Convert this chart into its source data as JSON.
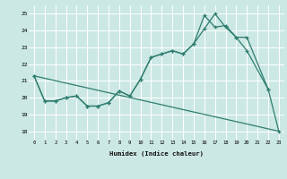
{
  "xlabel": "Humidex (Indice chaleur)",
  "bg_color": "#cce8e4",
  "grid_color": "#ffffff",
  "line_color": "#2d7d6e",
  "xlim": [
    -0.5,
    23.5
  ],
  "ylim": [
    17.5,
    25.5
  ],
  "yticks": [
    18,
    19,
    20,
    21,
    22,
    23,
    24,
    25
  ],
  "line1_x": [
    0,
    1,
    2,
    3,
    4,
    5,
    6,
    7,
    8,
    9,
    10,
    11,
    12,
    13,
    14,
    15,
    16,
    17,
    18,
    19,
    20,
    22
  ],
  "line1_y": [
    21.3,
    19.8,
    19.8,
    20.0,
    20.1,
    19.5,
    19.5,
    19.7,
    20.4,
    20.1,
    21.1,
    22.4,
    22.6,
    22.8,
    22.6,
    23.2,
    24.9,
    24.2,
    24.3,
    23.6,
    22.8,
    20.5
  ],
  "line2_x": [
    0,
    1,
    2,
    3,
    4,
    5,
    6,
    7,
    8,
    9,
    10,
    11,
    12,
    13,
    14,
    15,
    16,
    17,
    18,
    19,
    20,
    22,
    23
  ],
  "line2_y": [
    21.3,
    19.8,
    19.8,
    20.0,
    20.1,
    19.5,
    19.5,
    19.7,
    20.4,
    20.1,
    21.1,
    22.4,
    22.6,
    22.8,
    22.6,
    23.2,
    24.1,
    25.0,
    24.2,
    23.6,
    23.6,
    20.5,
    18.0
  ],
  "line3_x": [
    0,
    23
  ],
  "line3_y": [
    21.3,
    18.0
  ]
}
